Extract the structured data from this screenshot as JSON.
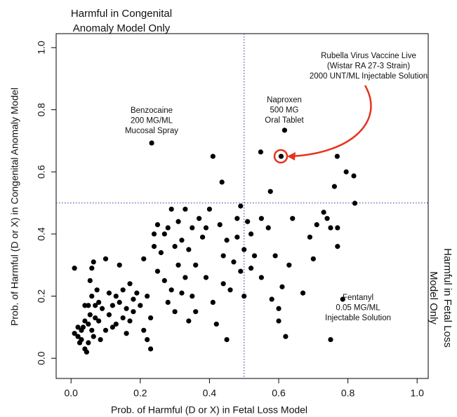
{
  "chart_data": {
    "type": "scatter",
    "x_label": "Prob. of Harmful (D or X) in Fetal Loss Model",
    "y_label": "Prob. of Harmful (D or X) in Congenital Anomaly Model",
    "quadrant_labels": [
      [
        "Harmful in Congenital",
        "Anomaly Model Only"
      ],
      [
        "Harmful in Fetal Loss",
        "Model Only"
      ]
    ],
    "annotations": [
      [
        "Benzocaine",
        "200 MG/ML",
        "Mucosal Spray"
      ],
      [
        "Naproxen",
        "500 MG",
        "Oral Tablet"
      ],
      [
        "Rubella Virus Vaccine Live",
        "(Wistar RA 27-3 Strain)",
        "2000 UNT/ML Injectable Solution"
      ],
      [
        "Fentanyl",
        "0.05 MG/ML",
        "Injectable Solution"
      ]
    ],
    "reference_lines": {
      "x": 0.5,
      "y": 0.5
    },
    "color": "#000000",
    "xlim": [
      -0.043,
      1.032
    ],
    "ylim": [
      -0.065,
      1.045
    ],
    "xticks": [
      {
        "value": 0,
        "label": "0.0"
      },
      0.2,
      0.4,
      0.6,
      0.8,
      {
        "value": 1,
        "label": "1.0"
      }
    ],
    "yticks": [
      {
        "value": 0,
        "label": "0.0"
      },
      0.2,
      0.4,
      0.6,
      0.8,
      {
        "value": 1,
        "label": "1.0"
      }
    ],
    "x": [
      0.233,
      0.617,
      0.607,
      0.41,
      0.548,
      0.436,
      0.576,
      0.761,
      0.769,
      0.795,
      0.817,
      0.82,
      0.785,
      0.01,
      0.01,
      0.02,
      0.02,
      0.025,
      0.03,
      0.03,
      0.035,
      0.04,
      0.04,
      0.04,
      0.045,
      0.05,
      0.05,
      0.05,
      0.055,
      0.055,
      0.06,
      0.06,
      0.06,
      0.065,
      0.065,
      0.07,
      0.07,
      0.075,
      0.08,
      0.08,
      0.085,
      0.09,
      0.1,
      0.1,
      0.11,
      0.11,
      0.12,
      0.12,
      0.13,
      0.13,
      0.14,
      0.14,
      0.15,
      0.15,
      0.16,
      0.16,
      0.17,
      0.17,
      0.18,
      0.18,
      0.19,
      0.2,
      0.21,
      0.21,
      0.22,
      0.22,
      0.23,
      0.23,
      0.24,
      0.24,
      0.25,
      0.25,
      0.26,
      0.27,
      0.27,
      0.28,
      0.28,
      0.29,
      0.29,
      0.3,
      0.3,
      0.31,
      0.31,
      0.32,
      0.32,
      0.33,
      0.33,
      0.34,
      0.34,
      0.35,
      0.35,
      0.36,
      0.36,
      0.37,
      0.38,
      0.39,
      0.39,
      0.4,
      0.41,
      0.42,
      0.43,
      0.44,
      0.44,
      0.45,
      0.45,
      0.46,
      0.47,
      0.48,
      0.48,
      0.49,
      0.49,
      0.5,
      0.5,
      0.51,
      0.52,
      0.52,
      0.53,
      0.55,
      0.55,
      0.57,
      0.58,
      0.59,
      0.6,
      0.6,
      0.61,
      0.62,
      0.63,
      0.64,
      0.67,
      0.69,
      0.7,
      0.71,
      0.73,
      0.74,
      0.75,
      0.75,
      0.77,
      0.77
    ],
    "values": [
      0.693,
      0.734,
      0.65,
      0.65,
      0.664,
      0.567,
      0.537,
      0.553,
      0.65,
      0.6,
      0.587,
      0.499,
      0.19,
      0.29,
      0.08,
      0.07,
      0.1,
      0.05,
      0.09,
      0.06,
      0.1,
      0.17,
      0.12,
      0.03,
      0.02,
      0.05,
      0.11,
      0.17,
      0.14,
      0.25,
      0.2,
      0.09,
      0.29,
      0.31,
      0.07,
      0.13,
      0.17,
      0.22,
      0.12,
      0.18,
      0.06,
      0.16,
      0.32,
      0.09,
      0.21,
      0.14,
      0.17,
      0.1,
      0.11,
      0.2,
      0.3,
      0.18,
      0.22,
      0.13,
      0.08,
      0.16,
      0.24,
      0.12,
      0.19,
      0.15,
      0.21,
      0.17,
      0.09,
      0.32,
      0.2,
      0.06,
      0.13,
      0.03,
      0.36,
      0.4,
      0.43,
      0.28,
      0.34,
      0.25,
      0.4,
      0.18,
      0.42,
      0.48,
      0.22,
      0.36,
      0.15,
      0.3,
      0.44,
      0.21,
      0.38,
      0.48,
      0.26,
      0.35,
      0.12,
      0.2,
      0.42,
      0.3,
      0.15,
      0.45,
      0.39,
      0.42,
      0.26,
      0.48,
      0.18,
      0.11,
      0.43,
      0.24,
      0.33,
      0.06,
      0.38,
      0.22,
      0.31,
      0.45,
      0.39,
      0.28,
      0.49,
      0.2,
      0.35,
      0.44,
      0.29,
      0.4,
      0.33,
      0.45,
      0.26,
      0.42,
      0.19,
      0.33,
      0.16,
      0.12,
      0.23,
      0.07,
      0.3,
      0.45,
      0.21,
      0.39,
      0.32,
      0.43,
      0.47,
      0.45,
      0.42,
      0.06,
      0.36,
      0.42
    ]
  }
}
